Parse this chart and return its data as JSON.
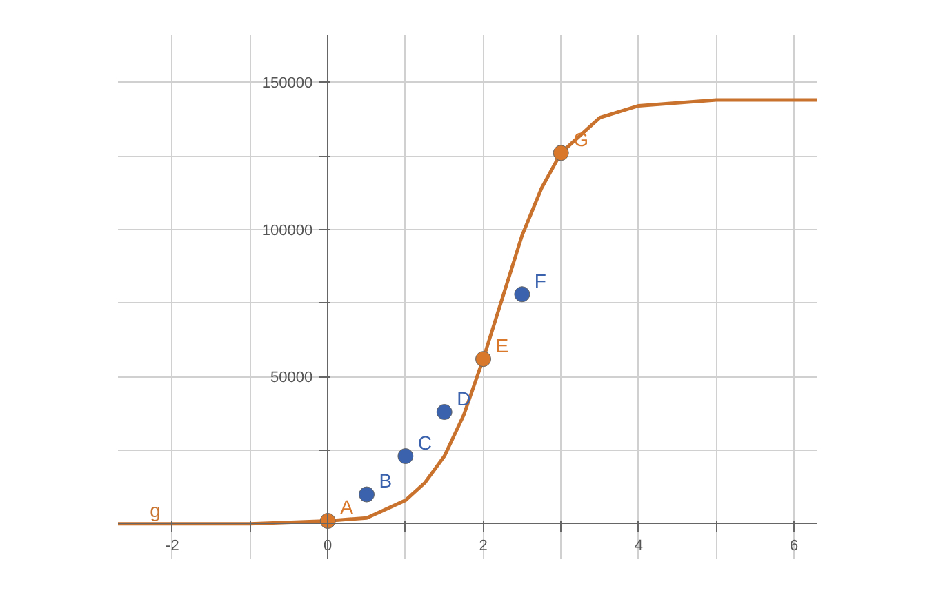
{
  "chart_data": {
    "type": "line",
    "xlim": [
      -2.7,
      6.3
    ],
    "ylim": [
      -12000,
      166000
    ],
    "xticks": [
      {
        "value": -2,
        "label": "-2"
      },
      {
        "value": -1,
        "label": null
      },
      {
        "value": 0,
        "label": "0"
      },
      {
        "value": 1,
        "label": null
      },
      {
        "value": 2,
        "label": "2"
      },
      {
        "value": 3,
        "label": null
      },
      {
        "value": 4,
        "label": "4"
      },
      {
        "value": 5,
        "label": null
      },
      {
        "value": 6,
        "label": "6"
      }
    ],
    "yticks": [
      {
        "value": 0,
        "label": null
      },
      {
        "value": 25000,
        "label": null
      },
      50000,
      {
        "value": 75000,
        "label": null
      },
      100000,
      {
        "value": 125000,
        "label": null
      },
      150000
    ],
    "grid": true,
    "series": [
      {
        "color": "#c8722e",
        "x": [
          -2.7,
          -1,
          0,
          0.5,
          1,
          1.25,
          1.5,
          1.75,
          2,
          2.25,
          2.5,
          2.75,
          3,
          3.5,
          4,
          5,
          6.3
        ],
        "values": [
          0,
          0,
          1000,
          2000,
          8000,
          14000,
          23000,
          37000,
          56000,
          77000,
          98000,
          114000,
          126000,
          138000,
          142000,
          144000,
          144000
        ]
      },
      {
        "type": "scatter",
        "color": "#d9782a",
        "x": [
          0,
          2,
          3
        ],
        "values": [
          1000,
          56000,
          126000
        ]
      },
      {
        "type": "scatter",
        "color": "#3a62ad",
        "x": [
          0.5,
          1,
          1.5,
          2.5
        ],
        "values": [
          10000,
          23000,
          38000,
          78000
        ]
      }
    ],
    "annotations": [
      {
        "text": "A",
        "x": 0,
        "y": 1000
      },
      {
        "text": "B",
        "x": 0.5,
        "y": 10000
      },
      {
        "text": "C",
        "x": 1,
        "y": 23000
      },
      {
        "text": "D",
        "x": 1.5,
        "y": 38000
      },
      {
        "text": "E",
        "x": 2,
        "y": 56000
      },
      {
        "text": "F",
        "x": 2.5,
        "y": 78000
      },
      {
        "text": "G",
        "x": 3,
        "y": 126000
      },
      {
        "text": "g",
        "x": -2.45,
        "y": 0
      }
    ]
  }
}
